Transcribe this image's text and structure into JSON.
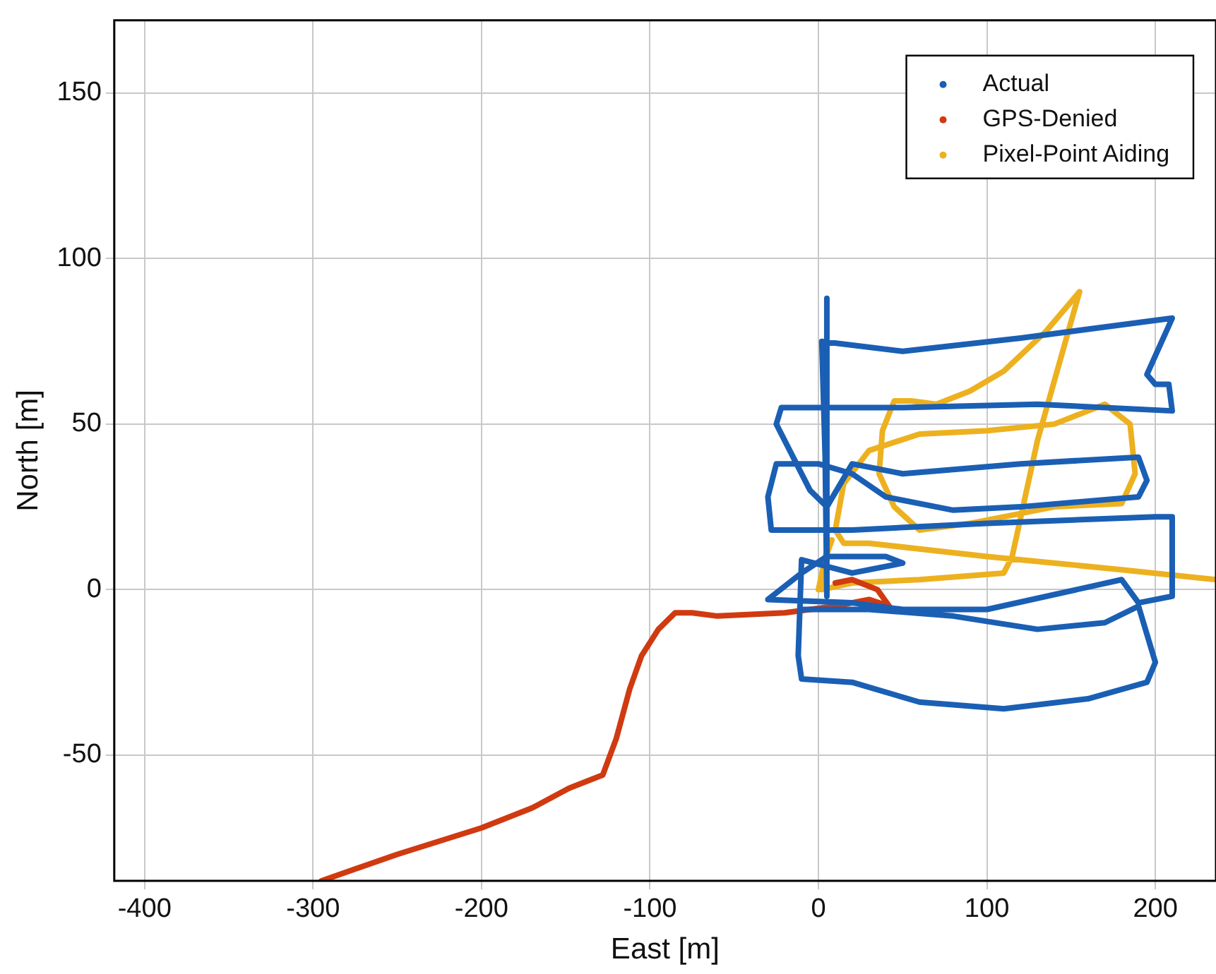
{
  "chart_data": {
    "type": "line",
    "xlabel": "East [m]",
    "ylabel": "North [m]",
    "xlim": [
      -418,
      236
    ],
    "ylim": [
      -88,
      172
    ],
    "xticks": [
      -400,
      -300,
      -200,
      -100,
      0,
      100,
      200
    ],
    "yticks": [
      -50,
      0,
      50,
      100,
      150
    ],
    "grid": true,
    "legend": "top right",
    "marker": "none",
    "line_style": "solid",
    "series": [
      {
        "name": "Actual",
        "color": "#1a5fb4",
        "x": [
          5,
          5,
          4,
          2,
          50,
          120,
          210,
          195,
          200,
          208,
          210,
          130,
          50,
          -22,
          -25,
          -5,
          5,
          20,
          50,
          120,
          190,
          195,
          190,
          120,
          80,
          40,
          20,
          0,
          -25,
          -30,
          -28,
          20,
          100,
          200,
          210,
          210,
          190,
          180,
          100,
          50,
          20,
          -30,
          -10,
          5,
          40,
          50,
          20,
          -10,
          -12,
          -10,
          20,
          60,
          110,
          160,
          195,
          200,
          190,
          170,
          130,
          80,
          30,
          -10
        ],
        "values": [
          88,
          -2,
          40,
          75,
          72,
          76,
          82,
          65,
          62,
          62,
          54,
          56,
          55,
          55,
          50,
          30,
          25,
          38,
          35,
          38,
          40,
          33,
          28,
          25,
          24,
          28,
          35,
          38,
          38,
          28,
          18,
          18,
          20,
          22,
          22,
          -2,
          -4,
          3,
          -6,
          -6,
          -4,
          -3,
          5,
          10,
          10,
          8,
          5,
          9,
          -20,
          -27,
          -28,
          -34,
          -36,
          -33,
          -28,
          -22,
          -5,
          -10,
          -12,
          -8,
          -6,
          -6
        ]
      },
      {
        "name": "GPS-Denied",
        "color": "#d03a10",
        "x": [
          -295,
          -250,
          -200,
          -170,
          -148,
          -128,
          -120,
          -112,
          -105,
          -95,
          -85,
          -75,
          -60,
          -20,
          10,
          30,
          42,
          35,
          20,
          10
        ],
        "values": [
          -88,
          -80,
          -72,
          -66,
          -60,
          -56,
          -45,
          -30,
          -20,
          -12,
          -7,
          -7,
          -8,
          -7,
          -5,
          -3,
          -5,
          0,
          3,
          2
        ]
      },
      {
        "name": "Pixel-Point Aiding",
        "color": "#edb120",
        "x": [
          0,
          5,
          8,
          3,
          2,
          20,
          60,
          110,
          115,
          130,
          155,
          135,
          110,
          90,
          70,
          55,
          45,
          38,
          36,
          45,
          60,
          90,
          140,
          180,
          188,
          185,
          170,
          140,
          100,
          60,
          30,
          15,
          10,
          15,
          30,
          100,
          180,
          236
        ],
        "values": [
          0,
          12,
          15,
          8,
          0,
          2,
          3,
          5,
          10,
          45,
          90,
          78,
          66,
          60,
          56,
          57,
          57,
          48,
          35,
          25,
          18,
          20,
          25,
          26,
          35,
          50,
          56,
          50,
          48,
          47,
          42,
          32,
          18,
          14,
          14,
          10,
          6,
          3
        ]
      }
    ]
  }
}
